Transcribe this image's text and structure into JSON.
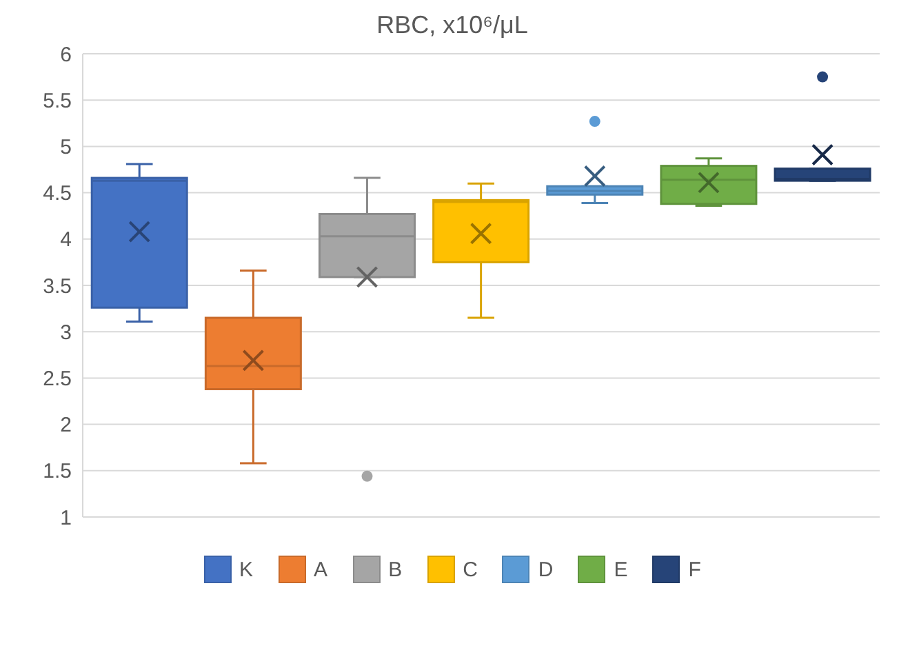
{
  "chart_data": {
    "type": "box",
    "title": "RBC, x10⁶/μL",
    "categories": [
      null
    ],
    "ylim": [
      1,
      6
    ],
    "yticks": [
      1,
      1.5,
      2,
      2.5,
      3,
      3.5,
      4,
      4.5,
      5,
      5.5,
      6
    ],
    "grid": "y",
    "legend": "bottom",
    "tick_labels": "y",
    "series": [
      {
        "name": "K",
        "color": "#4472c4",
        "boxes": [
          {
            "low": 3.11,
            "q1": 3.26,
            "median": 4.63,
            "q3": 4.66,
            "high": 4.81,
            "mean": 4.08
          }
        ]
      },
      {
        "name": "A",
        "color": "#ed7d31",
        "boxes": [
          {
            "low": 1.58,
            "q1": 2.38,
            "median": 2.63,
            "q3": 3.15,
            "high": 3.66,
            "mean": 2.69
          }
        ]
      },
      {
        "name": "B",
        "color": "#a5a5a5",
        "boxes": [
          {
            "low": 3.59,
            "q1": 3.59,
            "median": 4.03,
            "q3": 4.27,
            "high": 4.66,
            "mean": 3.59,
            "outliers": [
              1.44
            ]
          }
        ]
      },
      {
        "name": "C",
        "color": "#ffc000",
        "boxes": [
          {
            "low": 3.15,
            "q1": 3.75,
            "median": 4.4,
            "q3": 4.42,
            "high": 4.6,
            "mean": 4.06
          }
        ]
      },
      {
        "name": "D",
        "color": "#5b9bd5",
        "boxes": [
          {
            "low": 4.39,
            "q1": 4.48,
            "median": 4.52,
            "q3": 4.57,
            "high": 4.57,
            "mean": 4.68,
            "outliers": [
              5.27
            ]
          }
        ]
      },
      {
        "name": "E",
        "color": "#70ad47",
        "boxes": [
          {
            "low": 4.36,
            "q1": 4.38,
            "median": 4.64,
            "q3": 4.79,
            "high": 4.87,
            "mean": 4.61
          }
        ]
      },
      {
        "name": "F",
        "color": "#264478",
        "boxes": [
          {
            "low": 4.63,
            "q1": 4.63,
            "median": 4.65,
            "q3": 4.76,
            "high": 4.76,
            "mean": 4.91,
            "outliers": [
              5.75
            ]
          }
        ]
      }
    ]
  }
}
